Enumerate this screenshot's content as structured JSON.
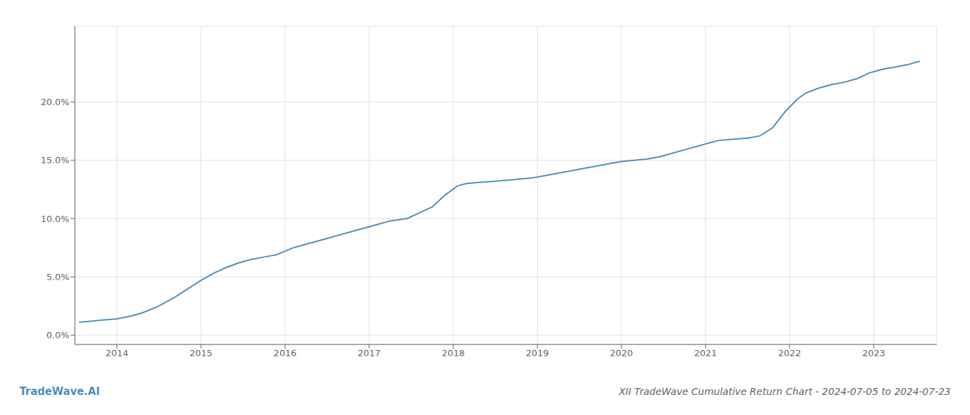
{
  "chart_data": {
    "type": "line",
    "title": "XII TradeWave Cumulative Return Chart - 2024-07-05 to 2024-07-23",
    "annotations": [
      "TradeWave.AI"
    ],
    "color": "#4e8fbe",
    "x": [
      2013.55,
      2013.7,
      2013.85,
      2014.0,
      2014.15,
      2014.3,
      2014.5,
      2014.7,
      2014.85,
      2015.0,
      2015.15,
      2015.3,
      2015.45,
      2015.6,
      2015.75,
      2015.9,
      2016.0,
      2016.1,
      2016.2,
      2016.35,
      2016.5,
      2016.65,
      2016.8,
      2016.95,
      2017.1,
      2017.25,
      2017.45,
      2017.6,
      2017.75,
      2017.9,
      2018.05,
      2018.15,
      2018.3,
      2018.5,
      2018.65,
      2018.8,
      2018.95,
      2019.1,
      2019.25,
      2019.4,
      2019.55,
      2019.7,
      2019.85,
      2020.0,
      2020.15,
      2020.3,
      2020.45,
      2020.6,
      2020.75,
      2020.9,
      2021.05,
      2021.15,
      2021.3,
      2021.5,
      2021.65,
      2021.8,
      2021.95,
      2022.1,
      2022.2,
      2022.35,
      2022.5,
      2022.65,
      2022.8,
      2022.95,
      2023.1,
      2023.25,
      2023.4,
      2023.55
    ],
    "values": [
      0.011,
      0.012,
      0.013,
      0.014,
      0.016,
      0.019,
      0.025,
      0.033,
      0.04,
      0.047,
      0.053,
      0.058,
      0.062,
      0.065,
      0.067,
      0.069,
      0.072,
      0.075,
      0.077,
      0.08,
      0.083,
      0.086,
      0.089,
      0.092,
      0.095,
      0.098,
      0.1,
      0.105,
      0.11,
      0.12,
      0.128,
      0.13,
      0.131,
      0.132,
      0.133,
      0.134,
      0.135,
      0.137,
      0.139,
      0.141,
      0.143,
      0.145,
      0.147,
      0.149,
      0.15,
      0.151,
      0.153,
      0.156,
      0.159,
      0.162,
      0.165,
      0.167,
      0.168,
      0.169,
      0.171,
      0.178,
      0.192,
      0.203,
      0.208,
      0.212,
      0.215,
      0.217,
      0.22,
      0.225,
      0.228,
      0.23,
      0.232,
      0.235
    ],
    "xlim": [
      2013.5,
      2023.75
    ],
    "xticks": [
      2014,
      2015,
      2016,
      2017,
      2018,
      2019,
      2020,
      2021,
      2022,
      2023
    ],
    "ylim": [
      -0.008,
      0.265
    ],
    "yticks": [
      {
        "value": 0,
        "label": "0.0%"
      },
      {
        "value": 0.05,
        "label": "5.0%"
      },
      {
        "value": 0.1,
        "label": "10.0%"
      },
      {
        "value": 0.15,
        "label": "15.0%"
      },
      {
        "value": 0.2,
        "label": "20.0%"
      }
    ],
    "grid": true
  }
}
